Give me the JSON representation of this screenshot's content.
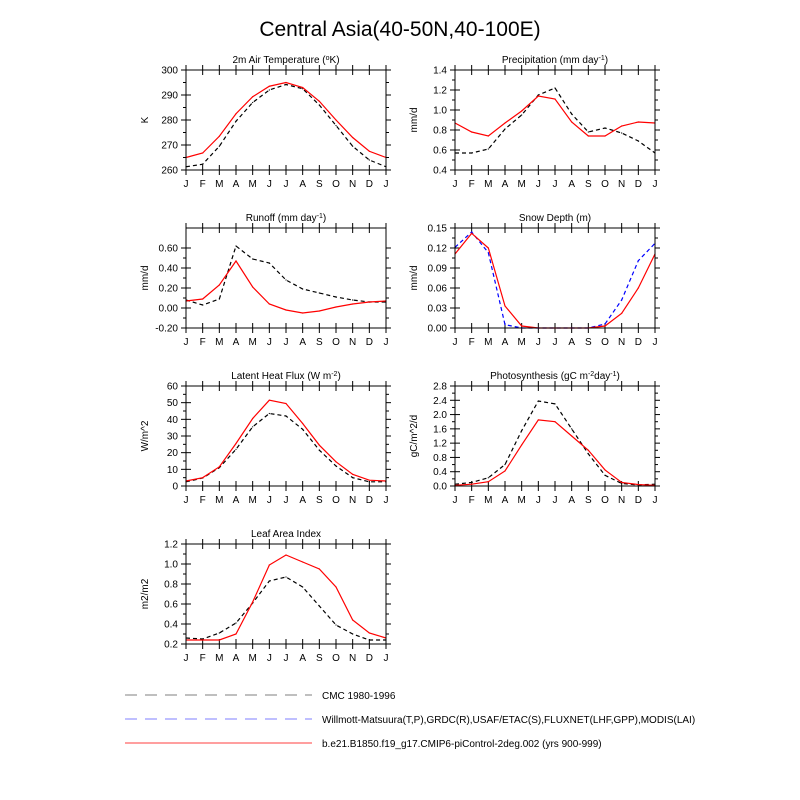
{
  "figure_title": "Central Asia(40-50N,40-100E)",
  "colors": {
    "obs": "#000000",
    "obs_alt": "#0000ff",
    "model": "#ff0000",
    "axis": "#000000"
  },
  "months": [
    "J",
    "F",
    "M",
    "A",
    "M",
    "J",
    "J",
    "A",
    "S",
    "O",
    "N",
    "D",
    "J"
  ],
  "legend": [
    {
      "label": "CMC 1980-1996",
      "color": "#999999",
      "dashed": true
    },
    {
      "label": "Willmott-Matsuura(T,P),GRDC(R),USAF/ETAC(S),FLUXNET(LHF,GPP),MODIS(LAI)",
      "color": "#9999ff",
      "dashed": true
    },
    {
      "label": "b.e21.B1850.f19_g17.CMIP6-piControl-2deg.002 (yrs 900-999)",
      "color": "#ff6666",
      "dashed": false
    }
  ],
  "chart_data": [
    {
      "type": "line",
      "title": "2m Air Temperature (°K)",
      "title_parts": [
        {
          "t": "2m Air Temperature ("
        },
        {
          "t": "o",
          "sup": true
        },
        {
          "t": "K)"
        }
      ],
      "ylabel": "K",
      "ylim": [
        260,
        300
      ],
      "yticks": [
        260,
        270,
        280,
        290,
        300
      ],
      "ytick_labels": [
        "260",
        "270",
        "280",
        "290",
        "300"
      ],
      "x": [
        "J",
        "F",
        "M",
        "A",
        "M",
        "J",
        "J",
        "A",
        "S",
        "O",
        "N",
        "D",
        "J"
      ],
      "series": [
        {
          "name": "obs",
          "color": "#000000",
          "dashed": true,
          "values": [
            261.3,
            262.3,
            269.5,
            279.5,
            287.0,
            292.0,
            294.2,
            292.5,
            286.0,
            277.8,
            269.5,
            264.0,
            261.3
          ]
        },
        {
          "name": "model",
          "color": "#ff0000",
          "dashed": false,
          "values": [
            265.0,
            266.8,
            273.5,
            282.5,
            289.3,
            293.5,
            295.0,
            293.0,
            287.5,
            280.0,
            273.0,
            267.5,
            265.0
          ]
        }
      ]
    },
    {
      "type": "line",
      "title": "Precipitation (mm day-1)",
      "title_parts": [
        {
          "t": "Precipitation (mm day"
        },
        {
          "t": "-1",
          "sup": true
        },
        {
          "t": ")"
        }
      ],
      "ylabel": "mm/d",
      "ylim": [
        0.4,
        1.4
      ],
      "yticks": [
        0.4,
        0.6,
        0.8,
        1.0,
        1.2,
        1.4
      ],
      "ytick_labels": [
        "0.4",
        "0.6",
        "0.8",
        "1.0",
        "1.2",
        "1.4"
      ],
      "x": [
        "J",
        "F",
        "M",
        "A",
        "M",
        "J",
        "J",
        "A",
        "S",
        "O",
        "N",
        "D",
        "J"
      ],
      "series": [
        {
          "name": "obs",
          "color": "#000000",
          "dashed": true,
          "values": [
            0.57,
            0.57,
            0.61,
            0.81,
            0.95,
            1.15,
            1.22,
            0.96,
            0.78,
            0.82,
            0.77,
            0.69,
            0.57
          ]
        },
        {
          "name": "model",
          "color": "#ff0000",
          "dashed": false,
          "values": [
            0.87,
            0.78,
            0.74,
            0.87,
            0.99,
            1.14,
            1.11,
            0.88,
            0.74,
            0.74,
            0.84,
            0.88,
            0.87
          ]
        }
      ]
    },
    {
      "type": "line",
      "title": "Runoff (mm day-1)",
      "title_parts": [
        {
          "t": "Runoff (mm day"
        },
        {
          "t": "-1",
          "sup": true
        },
        {
          "t": ")"
        }
      ],
      "ylabel": "mm/d",
      "ylim": [
        -0.2,
        0.8
      ],
      "yticks": [
        -0.2,
        0.0,
        0.2,
        0.4,
        0.6
      ],
      "ytick_labels": [
        "-0.20",
        "0.00",
        "0.20",
        "0.40",
        "0.60"
      ],
      "x": [
        "J",
        "F",
        "M",
        "A",
        "M",
        "J",
        "J",
        "A",
        "S",
        "O",
        "N",
        "D",
        "J"
      ],
      "series": [
        {
          "name": "obs",
          "color": "#000000",
          "dashed": true,
          "values": [
            0.08,
            0.03,
            0.09,
            0.62,
            0.49,
            0.45,
            0.28,
            0.19,
            0.15,
            0.11,
            0.08,
            0.06,
            0.06
          ]
        },
        {
          "name": "model",
          "color": "#ff0000",
          "dashed": false,
          "values": [
            0.07,
            0.09,
            0.23,
            0.47,
            0.21,
            0.04,
            -0.02,
            -0.05,
            -0.03,
            0.01,
            0.04,
            0.06,
            0.07
          ]
        }
      ]
    },
    {
      "type": "line",
      "title": "Snow Depth (m)",
      "title_parts": [
        {
          "t": "Snow Depth (m)"
        }
      ],
      "ylabel": "mm/d",
      "ylim": [
        0.0,
        0.15
      ],
      "yticks": [
        0.0,
        0.03,
        0.06,
        0.09,
        0.12,
        0.15
      ],
      "ytick_labels": [
        "0.00",
        "0.03",
        "0.06",
        "0.09",
        "0.12",
        "0.15"
      ],
      "x": [
        "J",
        "F",
        "M",
        "A",
        "M",
        "J",
        "J",
        "A",
        "S",
        "O",
        "N",
        "D",
        "J"
      ],
      "series": [
        {
          "name": "obs_alt",
          "color": "#0000ff",
          "dashed": true,
          "values": [
            0.121,
            0.144,
            0.113,
            0.005,
            0.0,
            0.0,
            0.0,
            0.0,
            0.0,
            0.006,
            0.042,
            0.101,
            0.127
          ]
        },
        {
          "name": "model",
          "color": "#ff0000",
          "dashed": false,
          "values": [
            0.111,
            0.142,
            0.12,
            0.033,
            0.003,
            0.0,
            0.0,
            0.0,
            0.0,
            0.003,
            0.022,
            0.06,
            0.111
          ]
        }
      ]
    },
    {
      "type": "line",
      "title": "Latent Heat Flux (W m-2)",
      "title_parts": [
        {
          "t": "Latent Heat Flux (W m"
        },
        {
          "t": "-2",
          "sup": true
        },
        {
          "t": ")"
        }
      ],
      "ylabel": "W/m^2",
      "ylim": [
        0,
        60
      ],
      "yticks": [
        0,
        10,
        20,
        30,
        40,
        50,
        60
      ],
      "ytick_labels": [
        "0",
        "10",
        "20",
        "30",
        "40",
        "50",
        "60"
      ],
      "x": [
        "J",
        "F",
        "M",
        "A",
        "M",
        "J",
        "J",
        "A",
        "S",
        "O",
        "N",
        "D",
        "J"
      ],
      "series": [
        {
          "name": "obs",
          "color": "#000000",
          "dashed": true,
          "values": [
            2.5,
            4.8,
            11.0,
            22.0,
            35.5,
            43.5,
            42.0,
            34.0,
            21.5,
            12.0,
            5.0,
            2.5,
            2.5
          ]
        },
        {
          "name": "model",
          "color": "#ff0000",
          "dashed": false,
          "values": [
            3.0,
            5.0,
            11.5,
            25.5,
            40.5,
            51.5,
            49.5,
            37.5,
            24.5,
            14.5,
            7.0,
            3.5,
            3.0
          ]
        }
      ]
    },
    {
      "type": "line",
      "title": "Photosynthesis (gC m-2day-1)",
      "title_parts": [
        {
          "t": "Photosynthesis (gC m"
        },
        {
          "t": "-2",
          "sup": true
        },
        {
          "t": "day"
        },
        {
          "t": "-1",
          "sup": true
        },
        {
          "t": ")"
        }
      ],
      "ylabel": "gC/m^2/d",
      "ylim": [
        0.0,
        2.8
      ],
      "yticks": [
        0.0,
        0.4,
        0.8,
        1.2,
        1.6,
        2.0,
        2.4,
        2.8
      ],
      "ytick_labels": [
        "0.0",
        "0.4",
        "0.8",
        "1.2",
        "1.6",
        "2.0",
        "2.4",
        "2.8"
      ],
      "x": [
        "J",
        "F",
        "M",
        "A",
        "M",
        "J",
        "J",
        "A",
        "S",
        "O",
        "N",
        "D",
        "J"
      ],
      "series": [
        {
          "name": "obs",
          "color": "#000000",
          "dashed": true,
          "values": [
            0.05,
            0.1,
            0.23,
            0.6,
            1.55,
            2.38,
            2.3,
            1.6,
            0.9,
            0.3,
            0.07,
            0.03,
            0.05
          ]
        },
        {
          "name": "model",
          "color": "#ff0000",
          "dashed": false,
          "values": [
            0.02,
            0.05,
            0.12,
            0.42,
            1.15,
            1.85,
            1.8,
            1.4,
            1.0,
            0.45,
            0.1,
            0.04,
            0.02
          ]
        }
      ]
    },
    {
      "type": "line",
      "title": "Leaf Area Index",
      "title_parts": [
        {
          "t": "Leaf Area Index"
        }
      ],
      "ylabel": "m2/m2",
      "ylim": [
        0.2,
        1.2
      ],
      "yticks": [
        0.2,
        0.4,
        0.6,
        0.8,
        1.0,
        1.2
      ],
      "ytick_labels": [
        "0.2",
        "0.4",
        "0.6",
        "0.8",
        "1.0",
        "1.2"
      ],
      "x": [
        "J",
        "F",
        "M",
        "A",
        "M",
        "J",
        "J",
        "A",
        "S",
        "O",
        "N",
        "D",
        "J"
      ],
      "series": [
        {
          "name": "obs",
          "color": "#000000",
          "dashed": true,
          "values": [
            0.26,
            0.25,
            0.31,
            0.41,
            0.61,
            0.83,
            0.87,
            0.77,
            0.58,
            0.39,
            0.3,
            0.24,
            0.24
          ]
        },
        {
          "name": "model",
          "color": "#ff0000",
          "dashed": false,
          "values": [
            0.24,
            0.24,
            0.24,
            0.3,
            0.62,
            0.99,
            1.09,
            1.02,
            0.95,
            0.77,
            0.44,
            0.31,
            0.26
          ]
        }
      ]
    }
  ]
}
